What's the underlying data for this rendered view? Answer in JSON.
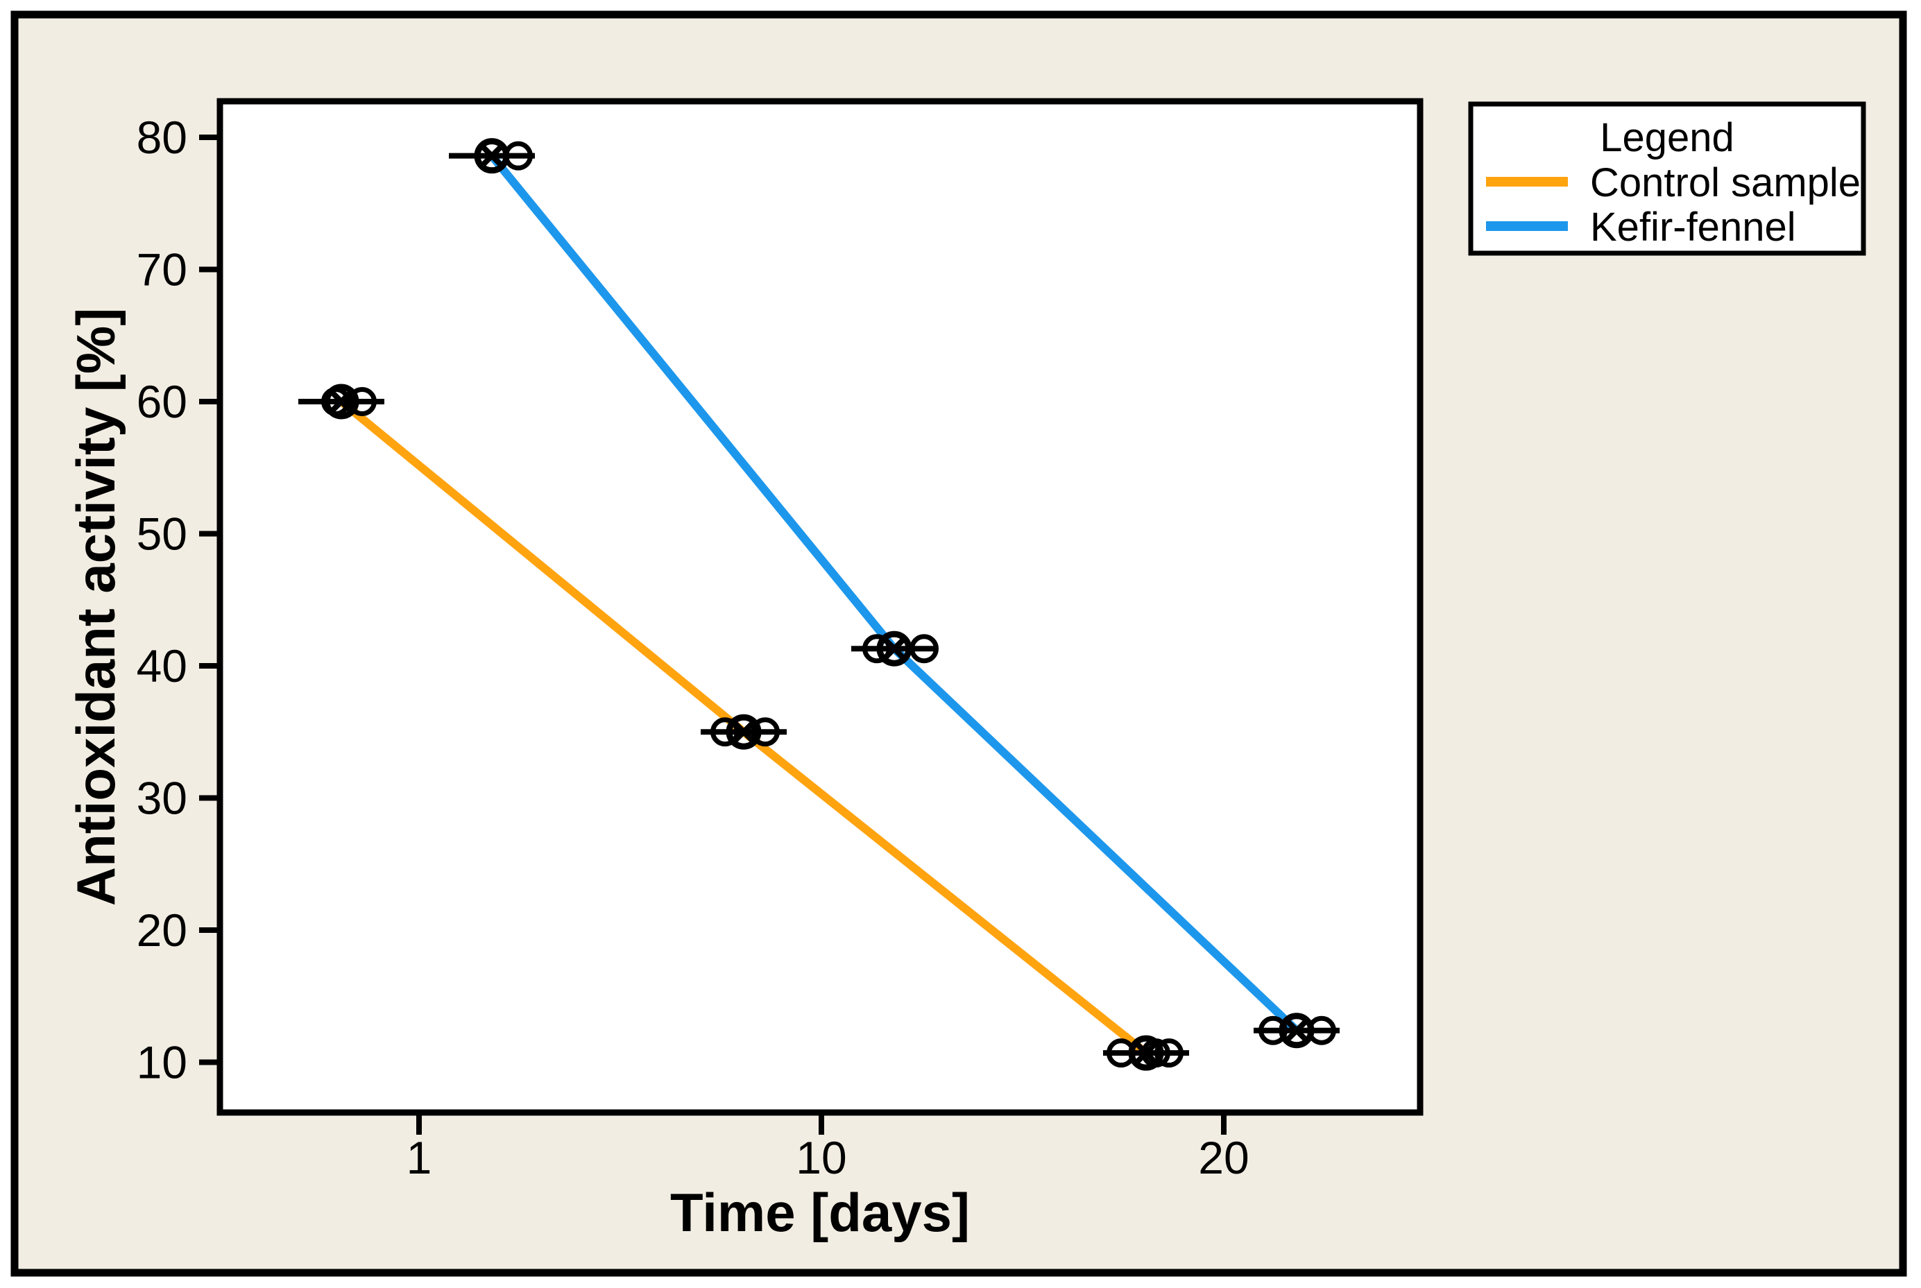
{
  "colors": {
    "page_background": "#FFFFFF",
    "panel_background": "#F2EDE2",
    "frame_border": "#000000",
    "plot_background": "#FFFFFF",
    "marker_color": "#000000",
    "control_sample": "#FFA30F",
    "kefir_fennel": "#1D97EC"
  },
  "legend": {
    "title": "Legend",
    "items": [
      {
        "label": "Control sample",
        "color": "#FFA30F"
      },
      {
        "label": "Kefir-fennel",
        "color": "#1D97EC"
      }
    ]
  },
  "chart_data": {
    "type": "line",
    "title": "",
    "xlabel": "Time [days]",
    "ylabel": "Antioxidant activity [%]",
    "x": [
      1,
      10,
      20
    ],
    "xticks": [
      "1",
      "10",
      "20"
    ],
    "yticks": [
      "80",
      "70",
      "60",
      "50",
      "40",
      "30",
      "20",
      "10"
    ],
    "ytick_values": [
      80,
      70,
      60,
      50,
      40,
      30,
      20,
      10
    ],
    "ylim": [
      5.8,
      82.7
    ],
    "grid": false,
    "legend_position": "top-right-outside",
    "marker_style": "circled-x mean marker with jittered open-circle replicates",
    "error_bars": {
      "orientation": "horizontal",
      "half_width_days": 1
    },
    "series": [
      {
        "name": "Control sample",
        "color": "#FFA30F",
        "values": [
          60.0,
          35.0,
          10.7
        ]
      },
      {
        "name": "Kefir-fennel",
        "color": "#1D97EC",
        "values": [
          78.6,
          41.3,
          12.4
        ]
      }
    ]
  }
}
